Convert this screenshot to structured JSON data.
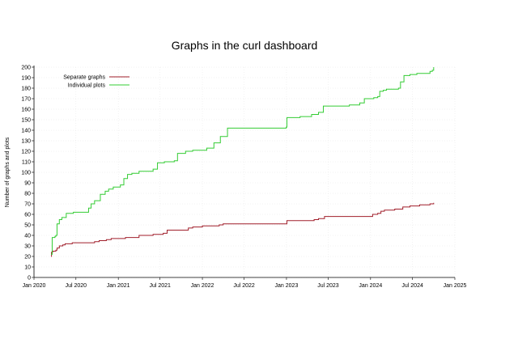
{
  "chart_data": {
    "type": "line",
    "title": "Graphs in the curl dashboard",
    "xlabel": "",
    "ylabel": "Number of graphs and plots",
    "xlim": [
      "2020-01-01",
      "2025-01-01"
    ],
    "ylim": [
      0,
      200
    ],
    "x_ticks": [
      "Jan 2020",
      "Jul 2020",
      "Jan 2021",
      "Jul 2021",
      "Jan 2022",
      "Jul 2022",
      "Jan 2023",
      "Jul 2023",
      "Jan 2024",
      "Jul 2024",
      "Jan 2025"
    ],
    "y_ticks": [
      0,
      10,
      20,
      30,
      40,
      50,
      60,
      70,
      80,
      90,
      100,
      110,
      120,
      130,
      140,
      150,
      160,
      170,
      180,
      190,
      200
    ],
    "grid": true,
    "legend_position": "top-left",
    "series": [
      {
        "name": "Separate graphs",
        "color": "#a01e2a",
        "points": [
          [
            "2020-03-15",
            20
          ],
          [
            "2020-03-17",
            24
          ],
          [
            "2020-03-22",
            25
          ],
          [
            "2020-04-05",
            26
          ],
          [
            "2020-04-10",
            28
          ],
          [
            "2020-04-20",
            30
          ],
          [
            "2020-05-05",
            31
          ],
          [
            "2020-05-15",
            32
          ],
          [
            "2020-06-15",
            33
          ],
          [
            "2020-09-01",
            33
          ],
          [
            "2020-09-20",
            34
          ],
          [
            "2020-10-10",
            35
          ],
          [
            "2020-11-10",
            36
          ],
          [
            "2020-12-01",
            37
          ],
          [
            "2021-02-01",
            38
          ],
          [
            "2021-04-01",
            40
          ],
          [
            "2021-06-01",
            41
          ],
          [
            "2021-07-15",
            42
          ],
          [
            "2021-08-01",
            45
          ],
          [
            "2021-11-01",
            47
          ],
          [
            "2021-11-20",
            48
          ],
          [
            "2022-01-01",
            49
          ],
          [
            "2022-02-01",
            49
          ],
          [
            "2022-03-15",
            50
          ],
          [
            "2022-04-01",
            51
          ],
          [
            "2022-12-31",
            51
          ],
          [
            "2023-01-03",
            54
          ],
          [
            "2023-03-15",
            54
          ],
          [
            "2023-05-01",
            55
          ],
          [
            "2023-05-20",
            56
          ],
          [
            "2023-06-15",
            58
          ],
          [
            "2023-12-01",
            58
          ],
          [
            "2024-01-10",
            60
          ],
          [
            "2024-02-01",
            61
          ],
          [
            "2024-02-15",
            63
          ],
          [
            "2024-03-01",
            64
          ],
          [
            "2024-04-15",
            65
          ],
          [
            "2024-05-20",
            67
          ],
          [
            "2024-06-20",
            68
          ],
          [
            "2024-08-01",
            69
          ],
          [
            "2024-09-15",
            70
          ],
          [
            "2024-10-01",
            71
          ]
        ]
      },
      {
        "name": "Individual plots",
        "color": "#33cc33",
        "points": [
          [
            "2020-03-15",
            22
          ],
          [
            "2020-03-20",
            38
          ],
          [
            "2020-04-01",
            39
          ],
          [
            "2020-04-05",
            40
          ],
          [
            "2020-04-10",
            51
          ],
          [
            "2020-04-20",
            55
          ],
          [
            "2020-05-01",
            57
          ],
          [
            "2020-05-20",
            61
          ],
          [
            "2020-06-20",
            62
          ],
          [
            "2020-08-15",
            62
          ],
          [
            "2020-08-25",
            66
          ],
          [
            "2020-09-05",
            70
          ],
          [
            "2020-09-20",
            73
          ],
          [
            "2020-10-15",
            79
          ],
          [
            "2020-11-05",
            82
          ],
          [
            "2020-11-20",
            84
          ],
          [
            "2020-12-10",
            86
          ],
          [
            "2021-01-10",
            88
          ],
          [
            "2021-01-25",
            94
          ],
          [
            "2021-02-10",
            98
          ],
          [
            "2021-03-01",
            99
          ],
          [
            "2021-04-01",
            101
          ],
          [
            "2021-05-01",
            101
          ],
          [
            "2021-06-01",
            103
          ],
          [
            "2021-06-20",
            109
          ],
          [
            "2021-07-20",
            110
          ],
          [
            "2021-09-01",
            111
          ],
          [
            "2021-09-15",
            118
          ],
          [
            "2021-10-20",
            120
          ],
          [
            "2021-11-20",
            121
          ],
          [
            "2022-01-01",
            121
          ],
          [
            "2022-01-20",
            123
          ],
          [
            "2022-02-20",
            128
          ],
          [
            "2022-03-20",
            134
          ],
          [
            "2022-04-20",
            142
          ],
          [
            "2022-12-31",
            143
          ],
          [
            "2023-01-03",
            152
          ],
          [
            "2023-03-01",
            153
          ],
          [
            "2023-04-20",
            155
          ],
          [
            "2023-05-20",
            157
          ],
          [
            "2023-06-10",
            163
          ],
          [
            "2023-08-01",
            163
          ],
          [
            "2023-10-01",
            164
          ],
          [
            "2023-11-15",
            166
          ],
          [
            "2023-12-05",
            170
          ],
          [
            "2024-01-15",
            171
          ],
          [
            "2024-02-01",
            172
          ],
          [
            "2024-02-10",
            177
          ],
          [
            "2024-02-25",
            178
          ],
          [
            "2024-03-10",
            179
          ],
          [
            "2024-05-01",
            180
          ],
          [
            "2024-05-10",
            186
          ],
          [
            "2024-05-25",
            192
          ],
          [
            "2024-06-20",
            193
          ],
          [
            "2024-07-20",
            194
          ],
          [
            "2024-09-15",
            196
          ],
          [
            "2024-09-25",
            197
          ],
          [
            "2024-10-01",
            200
          ]
        ]
      }
    ]
  }
}
